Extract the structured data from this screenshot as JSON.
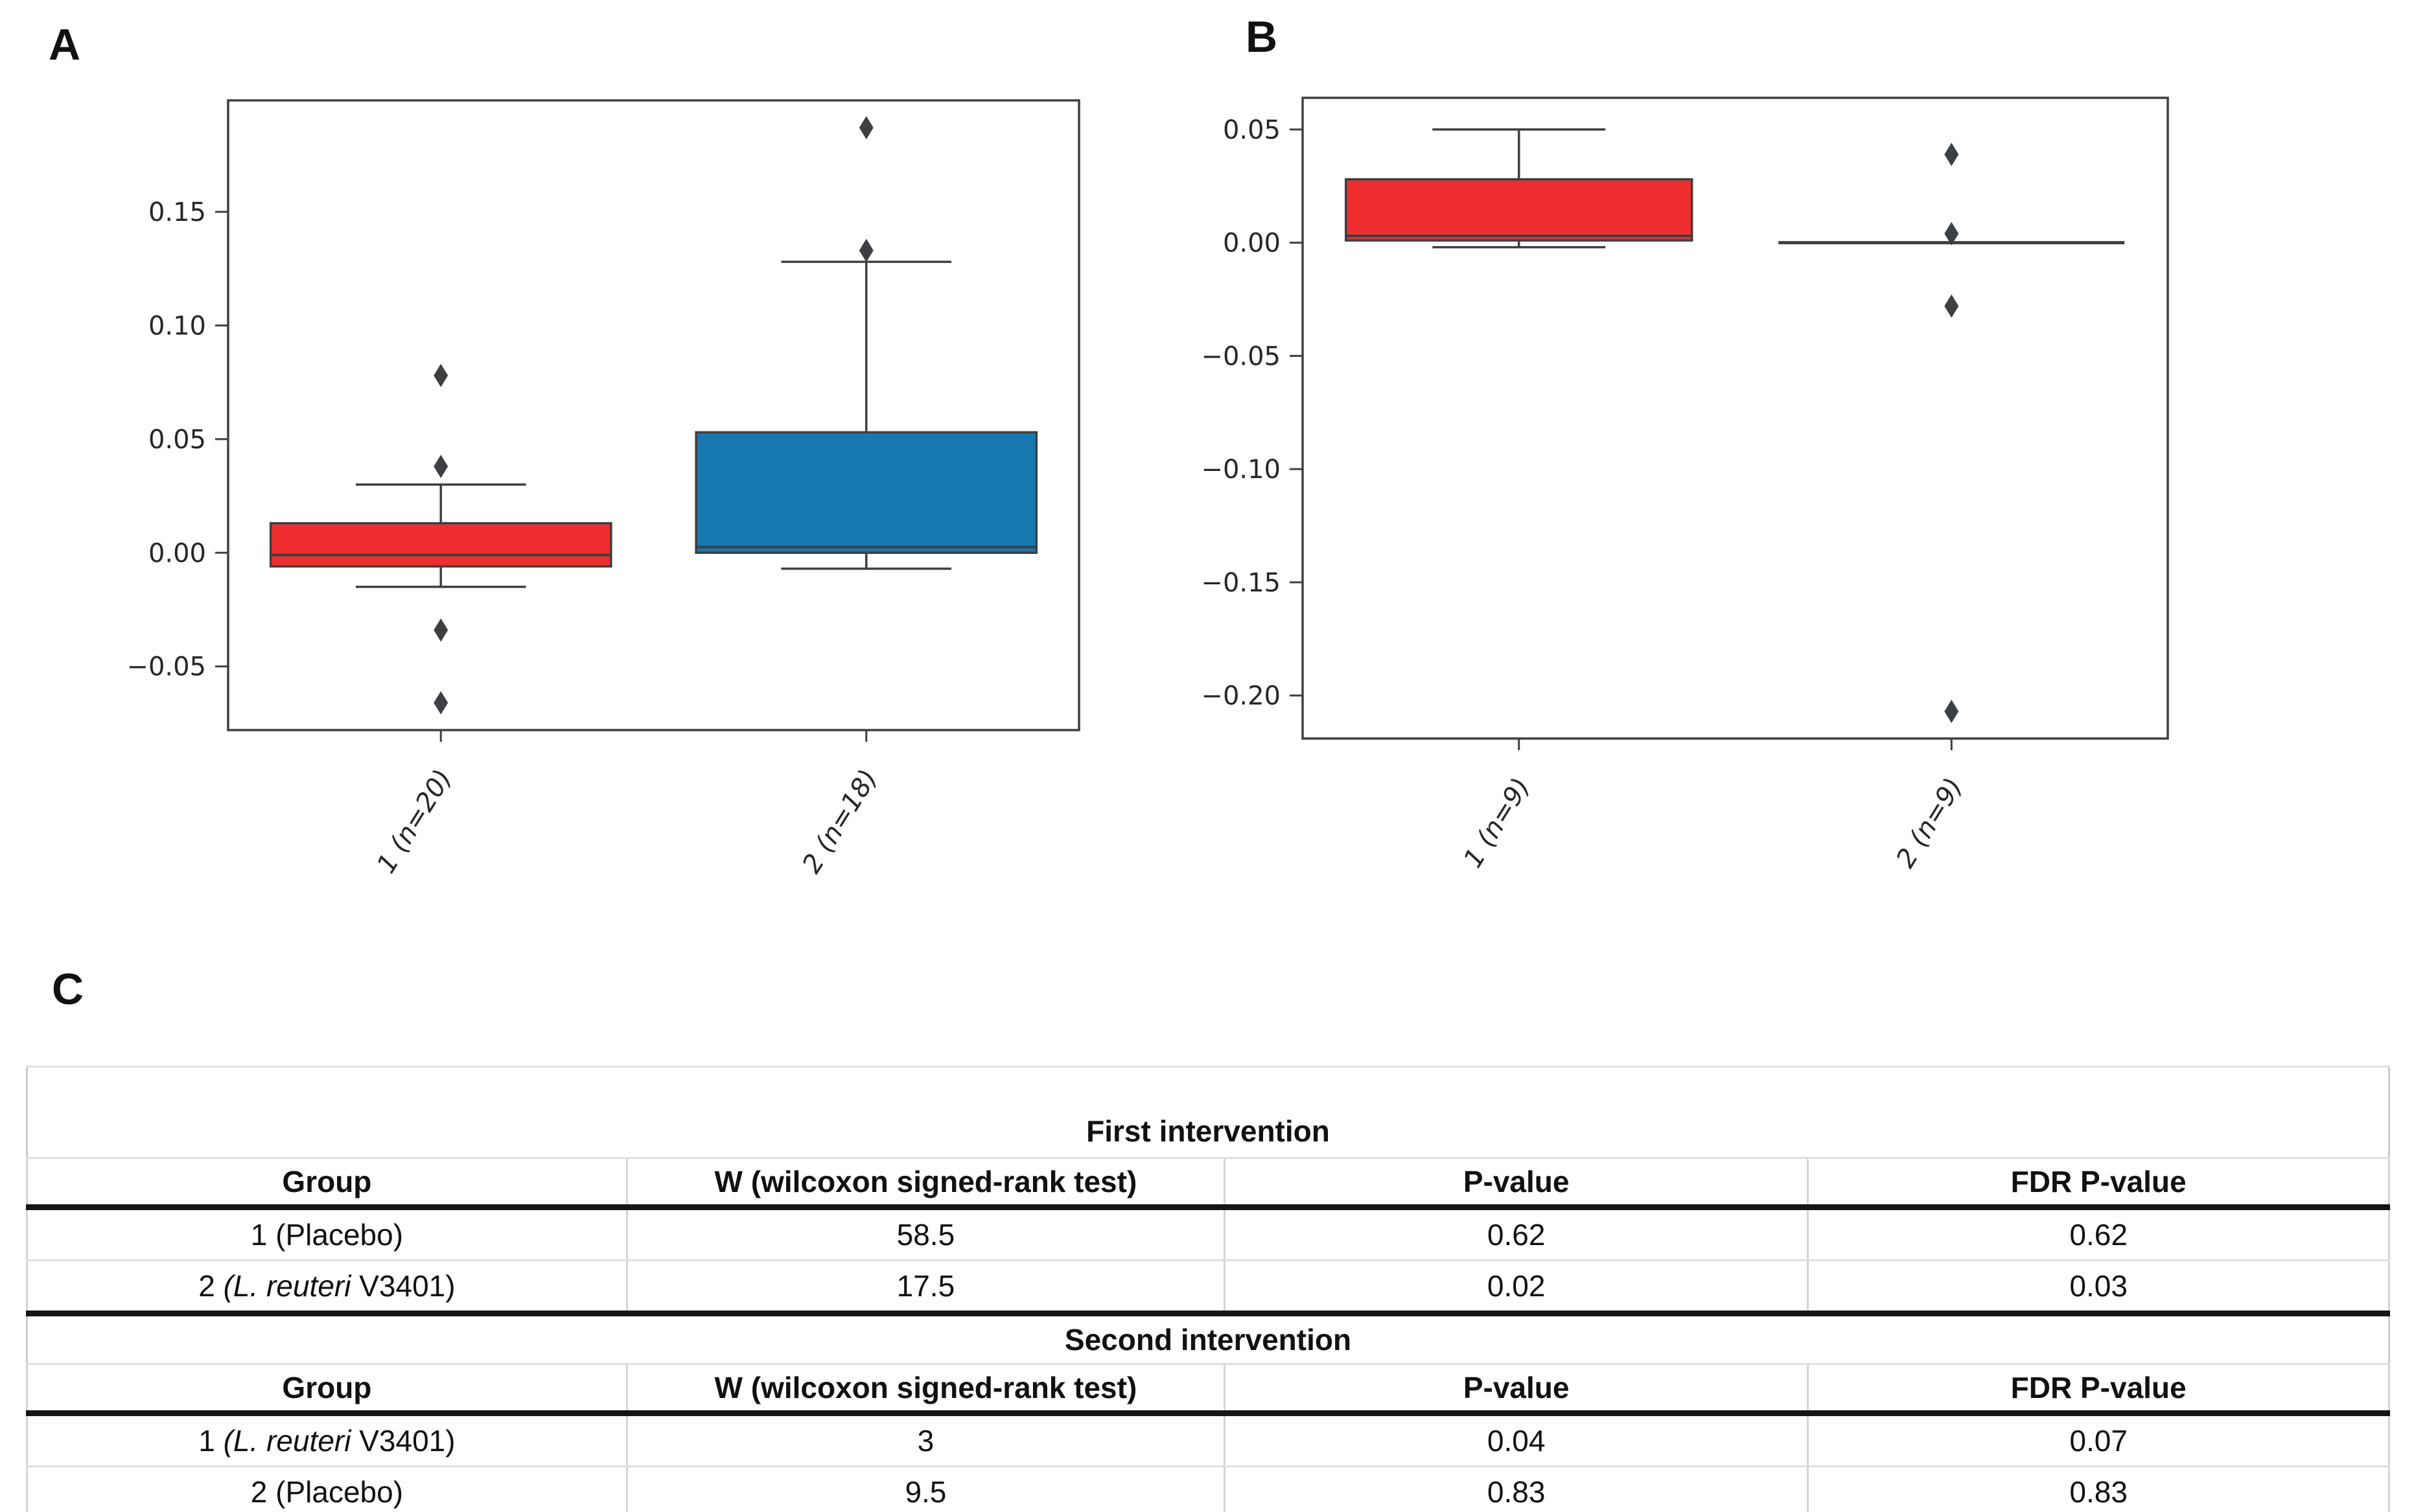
{
  "panel_labels": {
    "a": "A",
    "b": "B",
    "c": "C"
  },
  "colors": {
    "red_fill": "#ee2e2e",
    "blue_fill": "#1878b0",
    "edge": "#3d4043",
    "outlier": "#3d4043",
    "thick_table_line": "#161616",
    "light_table_line": "#d4d4d4"
  },
  "chart_data": [
    {
      "id": "A",
      "type": "boxplot",
      "title": "",
      "xlabel": "",
      "ylabel": "",
      "grid": false,
      "categories": [
        "1 (n=20)",
        "2 (n=18)"
      ],
      "ylim": [
        -0.078,
        0.199
      ],
      "yticks": [
        {
          "v": 0.15,
          "label": "0.15"
        },
        {
          "v": 0.1,
          "label": "0.10"
        },
        {
          "v": 0.05,
          "label": "0.05"
        },
        {
          "v": 0.0,
          "label": "0.00"
        },
        {
          "v": -0.05,
          "label": "−0.05"
        }
      ],
      "boxes": [
        {
          "category": "1 (n=20)",
          "fill": "#ee2e2e",
          "whisker_low": -0.015,
          "q1": -0.006,
          "median": -0.001,
          "q3": 0.013,
          "whisker_high": 0.03,
          "outliers": [
            0.078,
            0.038,
            -0.034,
            -0.066
          ]
        },
        {
          "category": "2 (n=18)",
          "fill": "#1878b0",
          "whisker_low": -0.007,
          "q1": 0.0,
          "median": 0.0025,
          "q3": 0.053,
          "whisker_high": 0.128,
          "outliers": [
            0.187,
            0.133
          ]
        }
      ]
    },
    {
      "id": "B",
      "type": "boxplot",
      "title": "",
      "xlabel": "",
      "ylabel": "",
      "grid": false,
      "categories": [
        "1 (n=9)",
        "2 (n=9)"
      ],
      "ylim": [
        -0.219,
        0.064
      ],
      "yticks": [
        {
          "v": 0.05,
          "label": "0.05"
        },
        {
          "v": 0.0,
          "label": "0.00"
        },
        {
          "v": -0.05,
          "label": "−0.05"
        },
        {
          "v": -0.1,
          "label": "−0.10"
        },
        {
          "v": -0.15,
          "label": "−0.15"
        },
        {
          "v": -0.2,
          "label": "−0.20"
        }
      ],
      "boxes": [
        {
          "category": "1 (n=9)",
          "fill": "#ee2e2e",
          "whisker_low": -0.002,
          "q1": 0.001,
          "median": 0.003,
          "q3": 0.028,
          "whisker_high": 0.05,
          "outliers": []
        },
        {
          "category": "2 (n=9)",
          "fill": "#ffffff",
          "collapsed": true,
          "whisker_low": 0.0,
          "q1": 0.0,
          "median": 0.0,
          "q3": 0.0,
          "whisker_high": 0.0,
          "outliers": [
            0.039,
            0.004,
            -0.028,
            -0.207
          ]
        }
      ]
    },
    {
      "id": "C",
      "type": "table",
      "sections": [
        {
          "title": "First intervention",
          "headers": [
            "Group",
            "W (wilcoxon signed-rank test)",
            "P-value",
            "FDR P-value"
          ],
          "rows": [
            {
              "group": {
                "pre": "1 (Placebo)",
                "it": "",
                "post": ""
              },
              "w": "58.5",
              "p": "0.62",
              "fdr": "0.62"
            },
            {
              "group": {
                "pre": "2 ",
                "it": "(L. reuteri",
                "post": " V3401)"
              },
              "w": "17.5",
              "p": "0.02",
              "fdr": "0.03"
            }
          ]
        },
        {
          "title": "Second intervention",
          "headers": [
            "Group",
            "W (wilcoxon signed-rank test)",
            "P-value",
            "FDR P-value"
          ],
          "rows": [
            {
              "group": {
                "pre": "1 ",
                "it": "(L. reuteri",
                "post": " V3401)"
              },
              "w": "3",
              "p": "0.04",
              "fdr": "0.07"
            },
            {
              "group": {
                "pre": "2 (Placebo)",
                "it": "",
                "post": ""
              },
              "w": "9.5",
              "p": "0.83",
              "fdr": "0.83"
            }
          ]
        }
      ]
    }
  ]
}
